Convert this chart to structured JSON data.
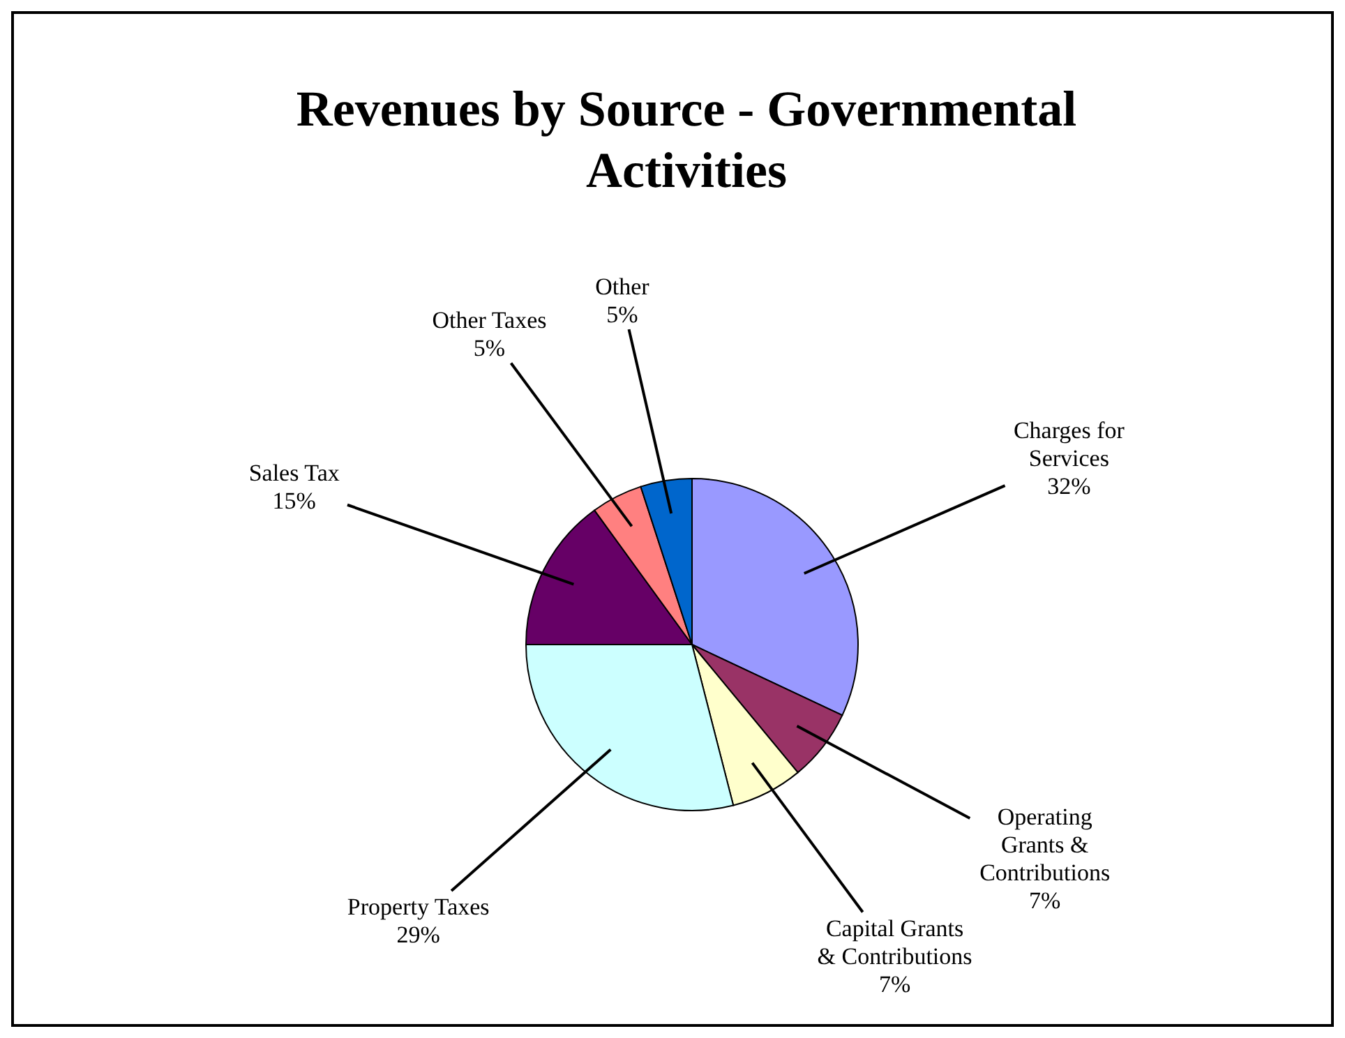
{
  "chart_data": {
    "type": "pie",
    "title": "Revenues by Source - Governmental Activities",
    "categories": [
      "Charges for Services",
      "Operating Grants & Contributions",
      "Capital Grants & Contributions",
      "Property Taxes",
      "Sales Tax",
      "Other Taxes",
      "Other"
    ],
    "values": [
      32,
      7,
      7,
      29,
      15,
      5,
      5
    ],
    "colors": [
      "#9999ff",
      "#993366",
      "#ffffcc",
      "#ccffff",
      "#660066",
      "#ff8080",
      "#0066cc"
    ],
    "value_labels": [
      "32%",
      "7%",
      "7%",
      "29%",
      "15%",
      "5%",
      "5%"
    ],
    "legend": false
  }
}
